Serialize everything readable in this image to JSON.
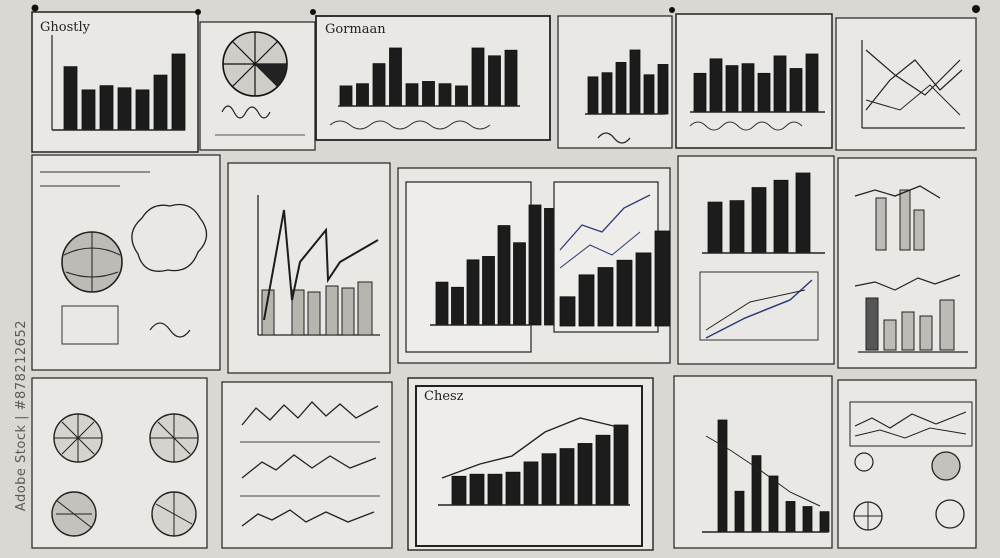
{
  "board": {
    "background": "#d9d8d3",
    "paper": "#e9e8e4",
    "ink": "#1c1c1c",
    "accent_ink": "#2a3a7a"
  },
  "captions": {
    "top_left_handwritten": "Ghostly",
    "center_top_handwritten": "Gormaan",
    "center_bottom_handwritten": "Chesz"
  },
  "watermark": {
    "stock_id": "Adobe Stock | #878212652"
  },
  "chart_data": [
    {
      "type": "bar",
      "values": [
        60,
        38,
        42,
        40,
        38,
        52,
        72
      ]
    },
    {
      "type": "pie",
      "values": [
        1,
        1,
        1,
        1,
        1,
        1,
        1,
        1
      ]
    },
    {
      "type": "bar",
      "values": [
        18,
        20,
        38,
        52,
        20,
        22,
        20,
        18,
        52,
        45,
        50
      ]
    },
    {
      "type": "bar",
      "values": [
        36,
        40,
        50,
        62,
        38,
        48
      ]
    },
    {
      "type": "bar",
      "values": [
        40,
        55,
        48,
        50,
        40,
        58,
        45,
        60
      ]
    },
    {
      "type": "bar",
      "values": [
        25,
        22,
        38,
        40,
        58,
        48,
        70,
        68
      ]
    },
    {
      "type": "bar",
      "values": [
        40,
        70,
        80,
        90,
        100,
        130
      ]
    },
    {
      "type": "bar",
      "values": [
        70,
        72,
        90,
        100,
        110
      ]
    },
    {
      "type": "bar",
      "values": [
        28,
        30,
        30,
        32,
        42,
        50,
        55,
        60,
        68,
        78
      ]
    },
    {
      "type": "bar",
      "values": [
        110,
        40,
        75,
        55,
        30,
        25,
        20
      ]
    }
  ]
}
